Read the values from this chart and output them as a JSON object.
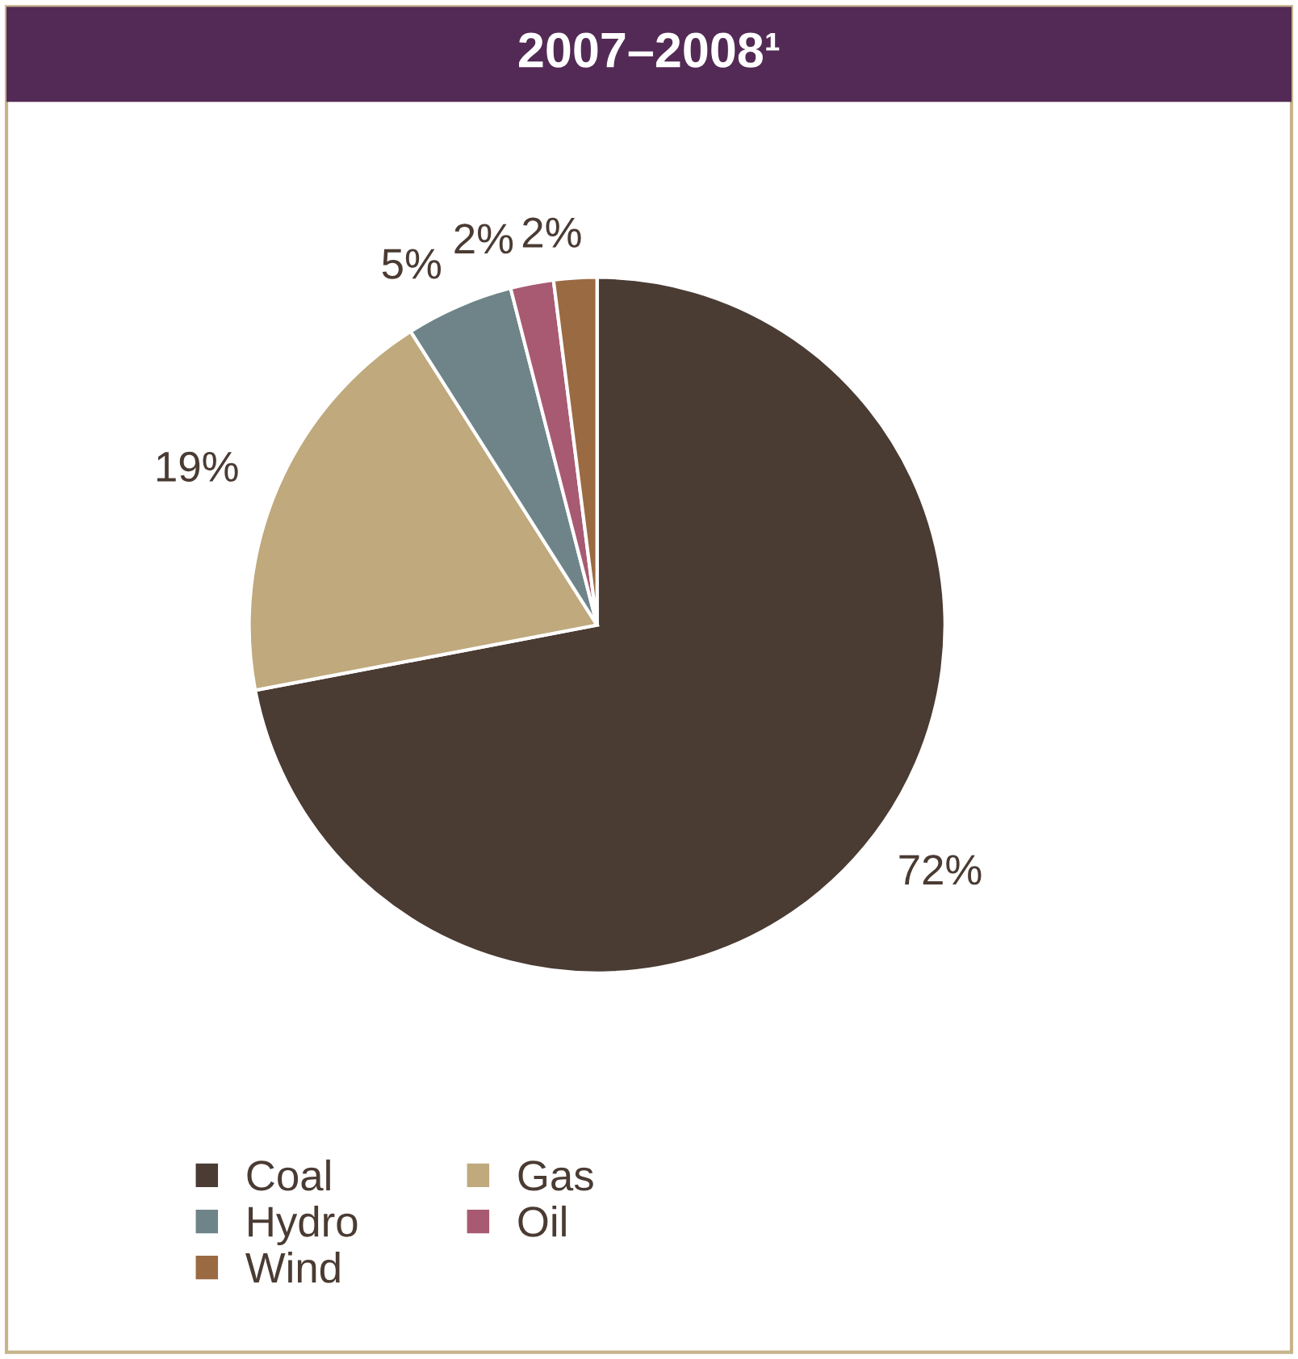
{
  "chart_data": {
    "type": "pie",
    "title": "2007–2008¹",
    "categories": [
      "Coal",
      "Gas",
      "Hydro",
      "Oil",
      "Wind"
    ],
    "values": [
      72,
      19,
      5,
      2,
      2
    ],
    "colors": [
      "#4a3b33",
      "#bfa97d",
      "#6e8489",
      "#a85a72",
      "#9a6a43"
    ],
    "value_labels": [
      "72%",
      "19%",
      "5%",
      "2%",
      "2%"
    ],
    "legend": "bottom"
  }
}
